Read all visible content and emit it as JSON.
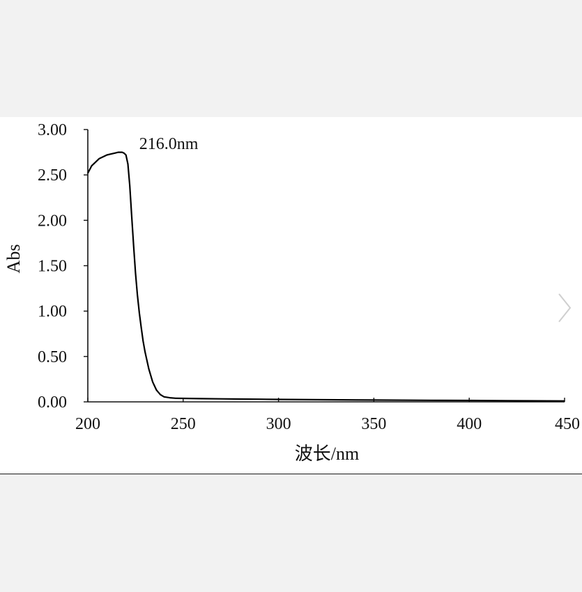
{
  "chart_data": {
    "type": "line",
    "xlabel": "波长/nm",
    "ylabel": "Abs",
    "xlim": [
      200,
      450
    ],
    "ylim": [
      0,
      3
    ],
    "x_ticks": [
      "200",
      "250",
      "300",
      "350",
      "400",
      "450"
    ],
    "y_ticks": [
      "0.00",
      "0.50",
      "1.00",
      "1.50",
      "2.00",
      "2.50",
      "3.00"
    ],
    "annotation": {
      "text": "216.0nm",
      "x": 216.0
    },
    "series": [
      {
        "color": "#000000",
        "x": [
          200,
          202,
          204,
          206,
          208,
          210,
          212,
          214,
          216,
          218,
          219,
          220,
          221,
          222,
          223,
          224,
          225,
          226,
          227,
          228,
          229,
          230,
          232,
          234,
          236,
          238,
          240,
          243,
          246,
          250,
          260,
          270,
          280,
          290,
          300,
          320,
          350,
          380,
          400,
          420,
          450
        ],
        "y": [
          2.52,
          2.6,
          2.64,
          2.68,
          2.7,
          2.72,
          2.73,
          2.74,
          2.75,
          2.75,
          2.74,
          2.72,
          2.62,
          2.38,
          2.05,
          1.72,
          1.42,
          1.18,
          0.98,
          0.82,
          0.67,
          0.55,
          0.36,
          0.22,
          0.13,
          0.08,
          0.055,
          0.045,
          0.04,
          0.038,
          0.035,
          0.033,
          0.031,
          0.029,
          0.027,
          0.024,
          0.02,
          0.017,
          0.015,
          0.013,
          0.01
        ]
      }
    ]
  },
  "controls": {
    "next_glyph": "›"
  }
}
